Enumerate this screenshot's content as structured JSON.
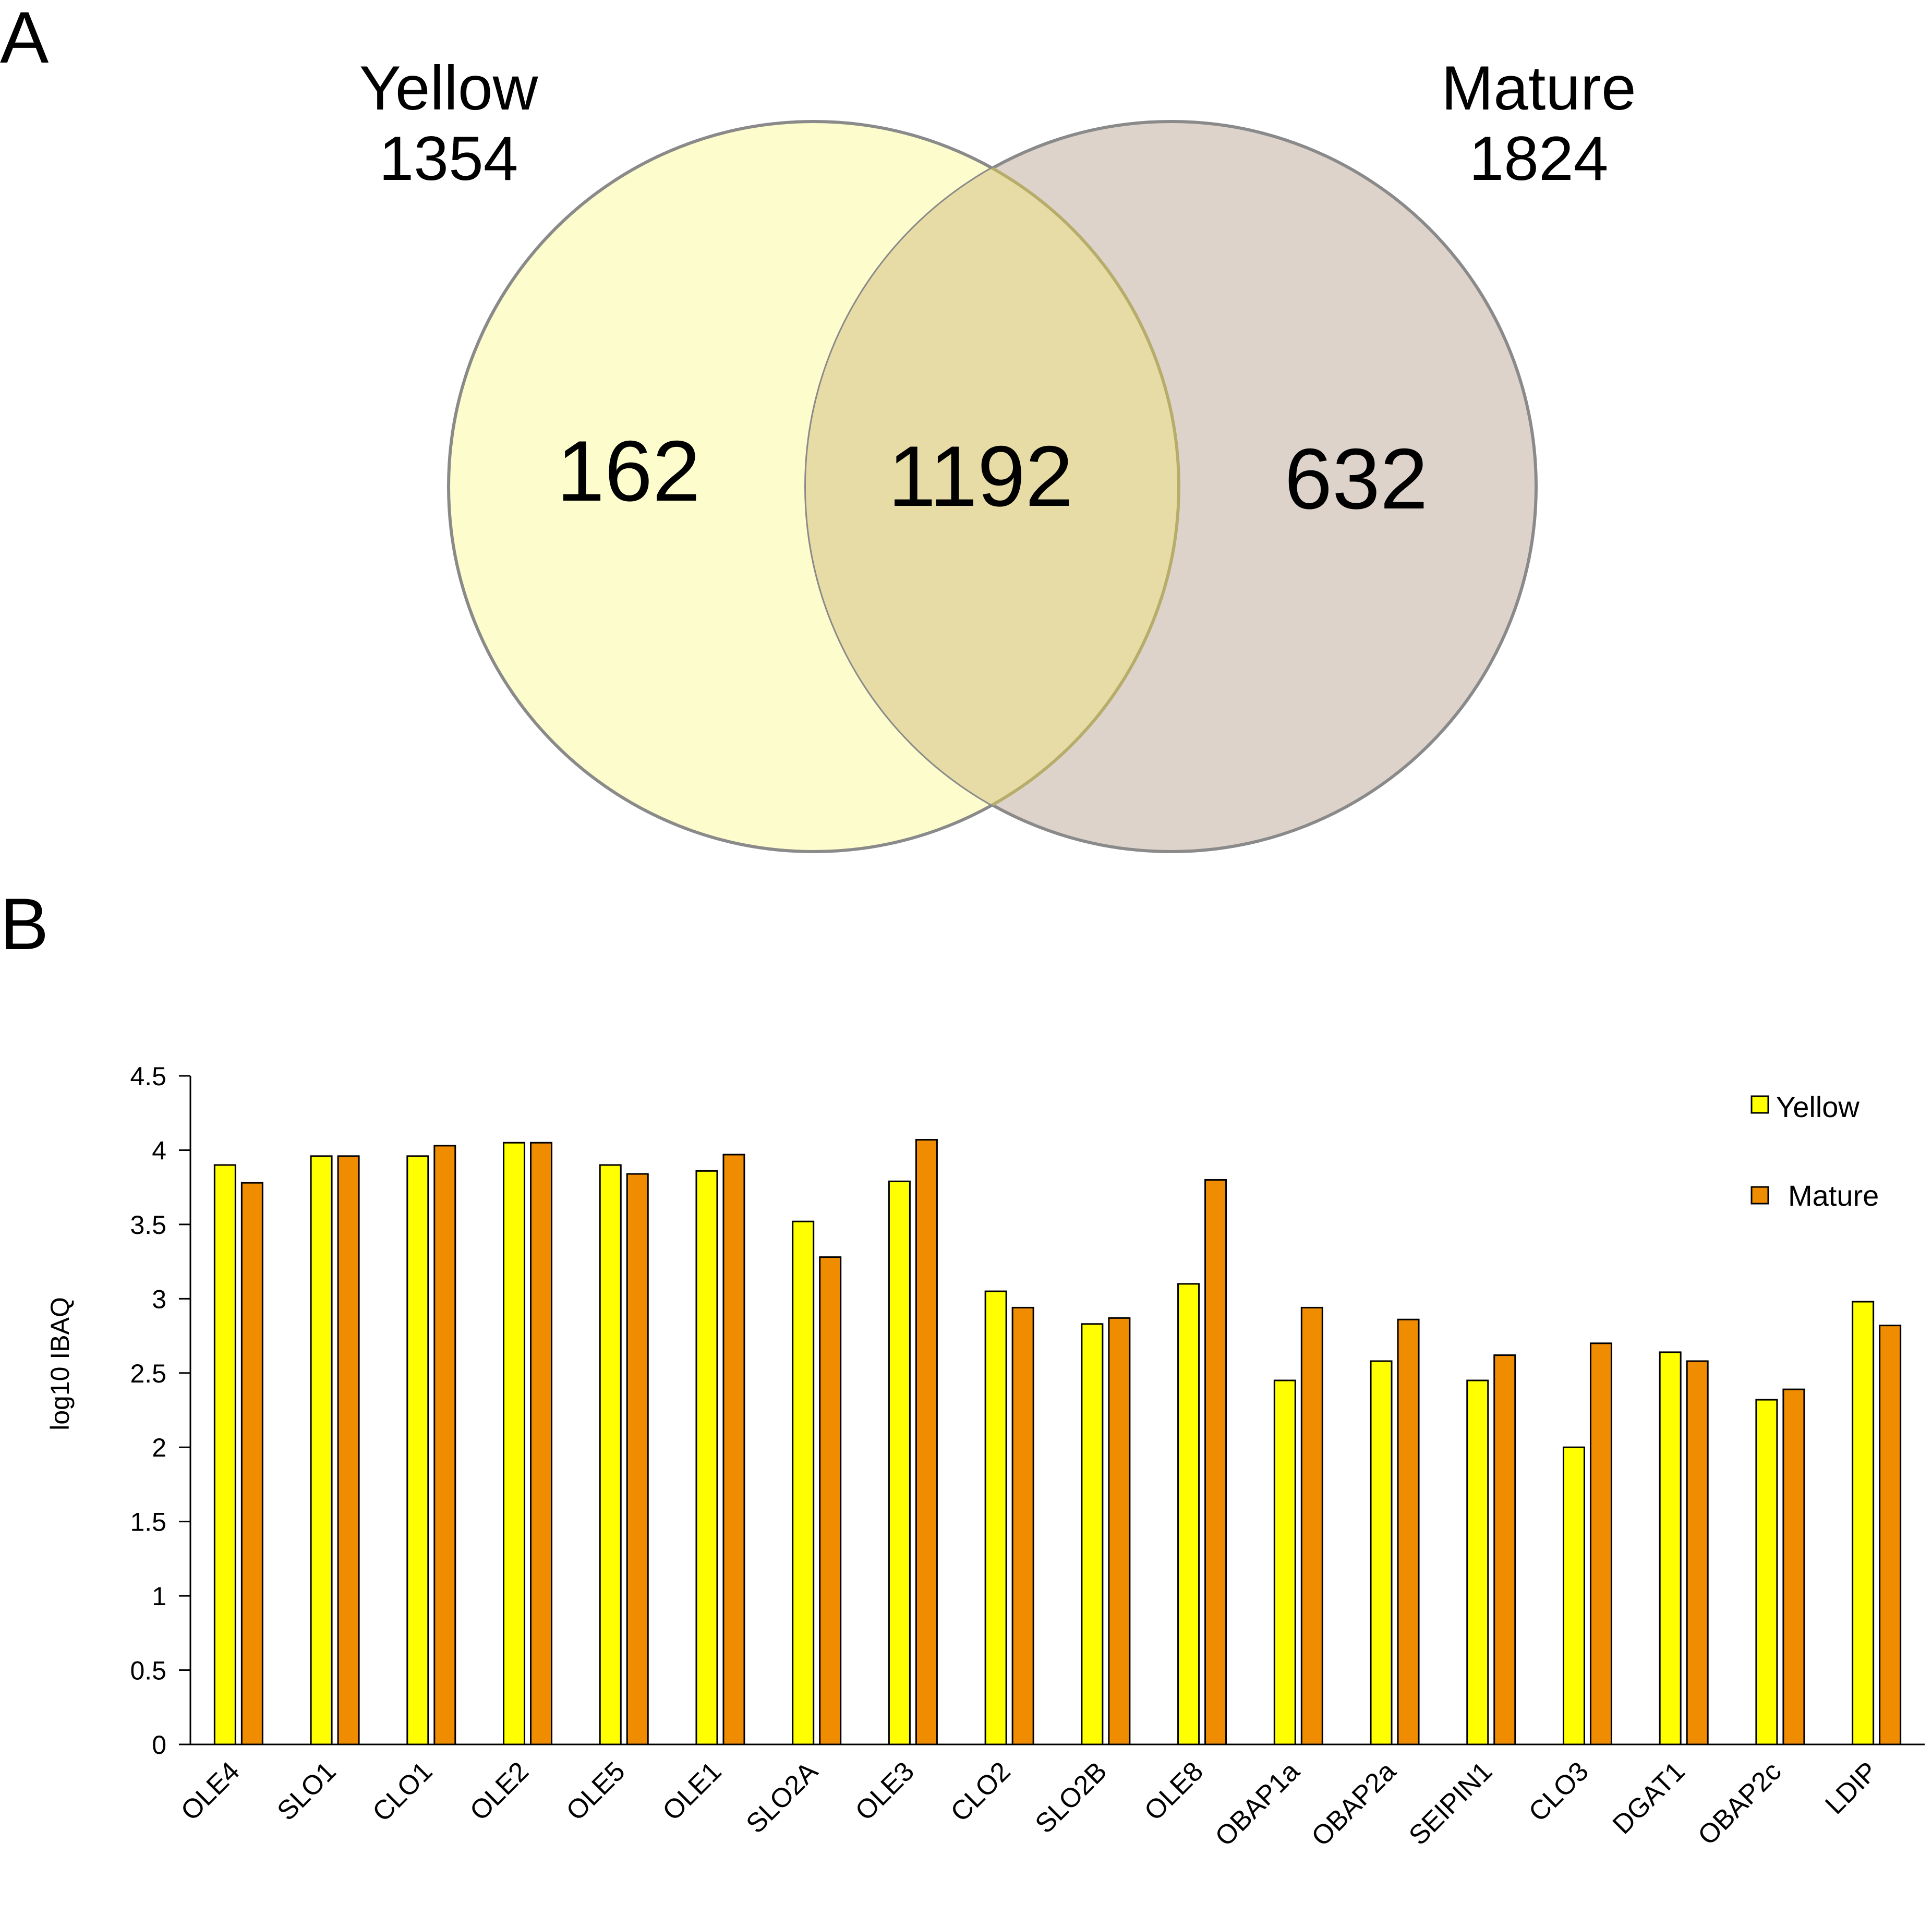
{
  "panels": {
    "a": {
      "label": "A",
      "venn": {
        "left_set": {
          "name": "Yellow",
          "total": "1354",
          "color": "#FDFCCC"
        },
        "right_set": {
          "name": "Mature",
          "total": "1824",
          "color": "#DDD3CB"
        },
        "overlap_color": "#E8DCA6",
        "left_only": "162",
        "intersection": "1192",
        "right_only": "632"
      }
    },
    "b": {
      "label": "B"
    }
  },
  "chart_data": {
    "type": "bar",
    "title": "",
    "xlabel": "",
    "ylabel": "log10 IBAQ",
    "ylim": [
      0,
      4.5
    ],
    "yticks": [
      "0",
      "0.5",
      "1",
      "1.5",
      "2",
      "2.5",
      "3",
      "3.5",
      "4",
      "4.5"
    ],
    "legend_position": "top-right",
    "categories": [
      "OLE4",
      "SLO1",
      "CLO1",
      "OLE2",
      "OLE5",
      "OLE1",
      "SLO2A",
      "OLE3",
      "CLO2",
      "SLO2B",
      "OLE8",
      "OBAP1a",
      "OBAP2a",
      "SEIPIN1",
      "CLO3",
      "DGAT1",
      "OBAP2c",
      "LDIP"
    ],
    "series": [
      {
        "name": "Yellow",
        "color": "#FFFF00",
        "values": [
          3.9,
          3.96,
          3.96,
          4.05,
          3.9,
          3.86,
          3.52,
          3.79,
          3.05,
          2.83,
          3.1,
          2.45,
          2.58,
          2.45,
          2.0,
          2.64,
          2.32,
          2.98
        ]
      },
      {
        "name": "Mature",
        "color": "#F08C00",
        "values": [
          3.78,
          3.96,
          4.03,
          4.05,
          3.84,
          3.97,
          3.28,
          4.07,
          2.94,
          2.87,
          3.8,
          2.94,
          2.86,
          2.62,
          2.7,
          2.58,
          2.39,
          2.82
        ]
      }
    ]
  }
}
